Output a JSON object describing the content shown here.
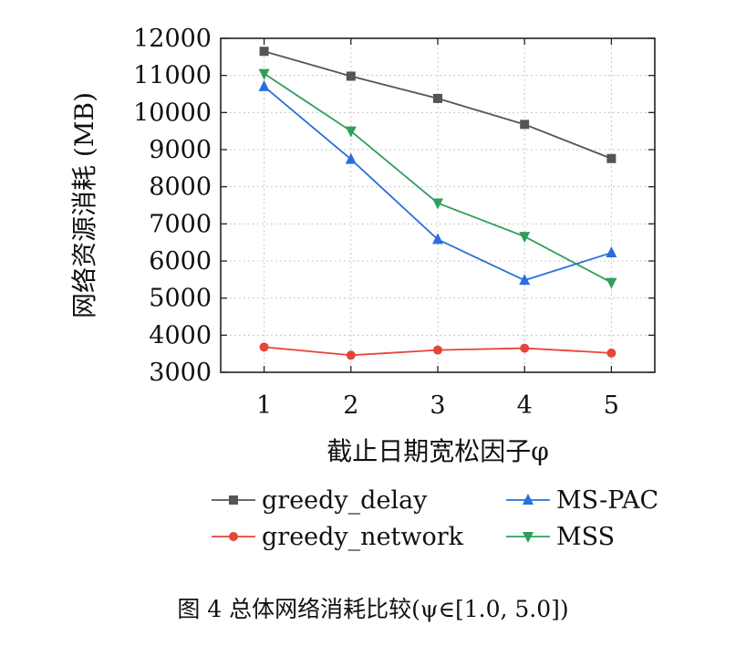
{
  "chart_data": {
    "type": "line",
    "title": "",
    "xlabel": "截止日期宽松因子φ",
    "ylabel": "网络资源消耗 (MB)",
    "x": [
      1,
      2,
      3,
      4,
      5
    ],
    "xticks": [
      "1",
      "2",
      "3",
      "4",
      "5"
    ],
    "xlim": [
      0.5,
      5.5
    ],
    "ylim": [
      3000,
      12000
    ],
    "yticks": [
      "3000",
      "4000",
      "5000",
      "6000",
      "7000",
      "8000",
      "9000",
      "10000",
      "11000",
      "12000"
    ],
    "grid": true,
    "legend_position": "bottom",
    "series": [
      {
        "name": "greedy_delay",
        "color": "#555555",
        "marker": "square",
        "values": [
          11650,
          10980,
          10380,
          9680,
          8760
        ]
      },
      {
        "name": "greedy_network",
        "color": "#e8443a",
        "marker": "circle",
        "values": [
          3680,
          3460,
          3600,
          3650,
          3520
        ]
      },
      {
        "name": "MS-PAC",
        "color": "#2a6fdb",
        "marker": "triangle-up",
        "values": [
          10700,
          8740,
          6580,
          5480,
          6220
        ]
      },
      {
        "name": "MSS",
        "color": "#2f9e5c",
        "marker": "triangle-down",
        "values": [
          11050,
          9500,
          7560,
          6660,
          5420
        ]
      }
    ]
  },
  "caption": "图 4 总体网络消耗比较(ψ∈[1.0, 5.0])"
}
